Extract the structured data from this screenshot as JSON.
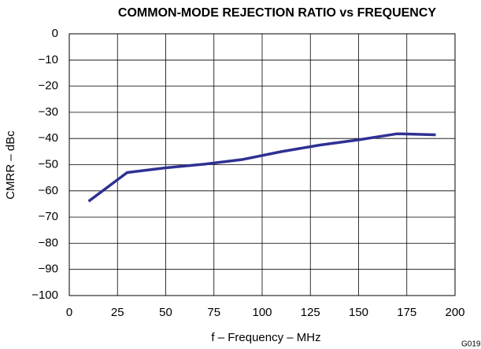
{
  "chart_data": {
    "type": "line",
    "title": "COMMON-MODE REJECTION RATIO vs FREQUENCY",
    "x_label": "f – Frequency – MHz",
    "y_label": "CMRR – dBc",
    "note": "G019",
    "x": [
      10,
      30,
      50,
      70,
      90,
      110,
      130,
      150,
      170,
      190
    ],
    "series": [
      {
        "color": "#2e3192",
        "values": [
          -64,
          -53,
          -51.2,
          -49.8,
          -48,
          -45,
          -42.5,
          -40.5,
          -38.2,
          -38.6
        ]
      }
    ],
    "xlim": [
      0,
      200
    ],
    "xticks": [
      0,
      25,
      50,
      75,
      100,
      125,
      150,
      175,
      200
    ],
    "ylim": [
      -100,
      0
    ],
    "yticks": [
      0,
      {
        "value": -10,
        "label": "−10"
      },
      {
        "value": -20,
        "label": "−20"
      },
      {
        "value": -30,
        "label": "−30"
      },
      {
        "value": -40,
        "label": "−40"
      },
      {
        "value": -50,
        "label": "−50"
      },
      {
        "value": -60,
        "label": "−60"
      },
      {
        "value": -70,
        "label": "−70"
      },
      {
        "value": -80,
        "label": "−80"
      },
      {
        "value": -90,
        "label": "−90"
      },
      {
        "value": -100,
        "label": "−100"
      }
    ],
    "grid": true
  }
}
